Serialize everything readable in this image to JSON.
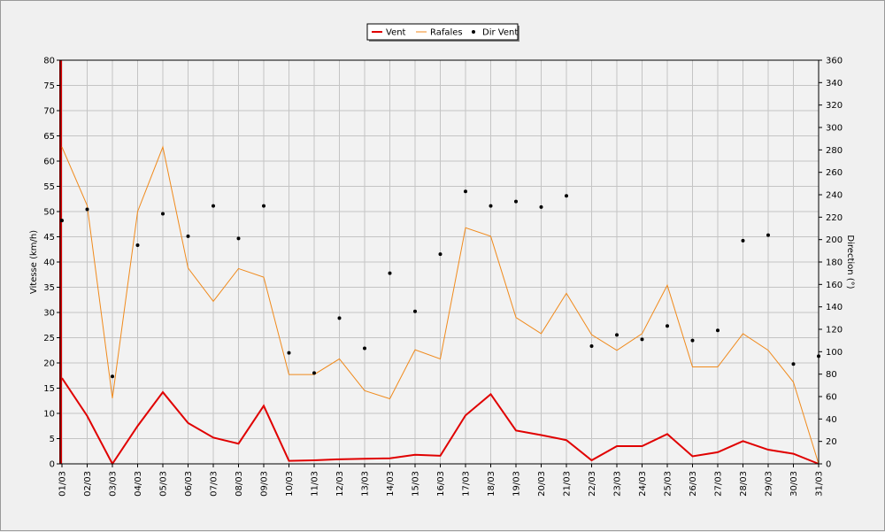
{
  "chart_data": {
    "type": "line",
    "categories": [
      "01/03",
      "02/03",
      "03/03",
      "04/03",
      "05/03",
      "06/03",
      "07/03",
      "08/03",
      "09/03",
      "10/03",
      "11/03",
      "12/03",
      "13/03",
      "14/03",
      "15/03",
      "16/03",
      "17/03",
      "18/03",
      "19/03",
      "20/03",
      "21/03",
      "22/03",
      "23/03",
      "24/03",
      "25/03",
      "26/03",
      "27/03",
      "28/03",
      "29/03",
      "30/03",
      "31/03"
    ],
    "ylabel": "Vitesse (km/h)",
    "y2label": "Direction (°)",
    "ylim": [
      0,
      80
    ],
    "y2lim": [
      0,
      360
    ],
    "yticks": [
      0,
      5,
      10,
      15,
      20,
      25,
      30,
      35,
      40,
      45,
      50,
      55,
      60,
      65,
      70,
      75,
      80
    ],
    "y2ticks": [
      0,
      20,
      40,
      60,
      80,
      100,
      120,
      140,
      160,
      180,
      200,
      220,
      240,
      260,
      280,
      300,
      320,
      340,
      360
    ],
    "grid": true,
    "legend_position": "top-center",
    "series": [
      {
        "name": "Vent",
        "color": "#e00000",
        "axis": "left",
        "style": "line",
        "values": [
          17.0,
          9.5,
          0.0,
          7.5,
          14.2,
          8.1,
          5.2,
          4.0,
          11.5,
          0.6,
          0.7,
          0.9,
          1.0,
          1.1,
          1.8,
          1.6,
          9.6,
          13.8,
          6.6,
          5.7,
          4.7,
          0.7,
          3.5,
          3.5,
          5.9,
          1.5,
          2.3,
          4.5,
          2.8,
          2.0,
          0.0
        ]
      },
      {
        "name": "Rafales",
        "color": "#f08a1c",
        "axis": "left",
        "style": "line",
        "values": [
          62.8,
          51.2,
          13.0,
          50.0,
          62.8,
          38.8,
          32.2,
          38.7,
          37.0,
          17.7,
          17.7,
          20.8,
          14.5,
          12.9,
          22.6,
          20.8,
          46.8,
          45.1,
          29.0,
          25.8,
          33.8,
          25.6,
          22.5,
          25.8,
          35.4,
          19.2,
          19.2,
          25.8,
          22.5,
          16.2,
          0.0
        ]
      },
      {
        "name": "Dir Vent",
        "color": "#000000",
        "axis": "right",
        "style": "points",
        "values": [
          217,
          227,
          78,
          195,
          223,
          203,
          230,
          201,
          230,
          99,
          81,
          130,
          103,
          170,
          136,
          187,
          243,
          230,
          234,
          229,
          239,
          105,
          115,
          111,
          123,
          110,
          119,
          199,
          204,
          89,
          96
        ]
      }
    ]
  }
}
